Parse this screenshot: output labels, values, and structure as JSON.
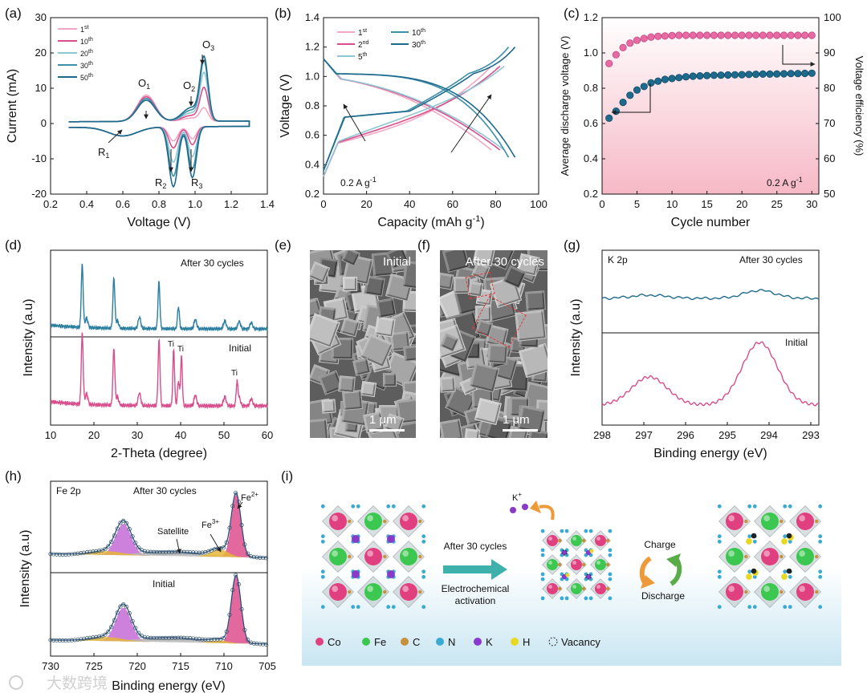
{
  "colors": {
    "pink": "#d94d8c",
    "pink_light": "#f0a8c4",
    "teal_light": "#8ec6d2",
    "teal": "#3c8fa8",
    "teal_dark": "#1e6a8c",
    "navy": "#2a6a8e"
  },
  "panel_letters": [
    "(a)",
    "(b)",
    "(c)",
    "(d)",
    "(e)",
    "(f)",
    "(g)",
    "(h)",
    "(i)"
  ],
  "chart_data": [
    {
      "panel": "a",
      "type": "line",
      "xlabel": "Voltage (V)",
      "ylabel": "Current (mA)",
      "xlim": [
        0.2,
        1.4
      ],
      "ylim": [
        -20,
        30
      ],
      "xticks": [
        "0.2",
        "0.4",
        "0.6",
        "0.8",
        "1.0",
        "1.2",
        "1.4"
      ],
      "yticks": [
        "-20",
        "-10",
        "0",
        "10",
        "20",
        "30"
      ],
      "legend": [
        "1st",
        "10th",
        "20th",
        "30th",
        "50th"
      ],
      "annotations": [
        "O1",
        "O2",
        "O3",
        "R1",
        "R2",
        "R3"
      ],
      "series": [
        {
          "name": "1st",
          "ox_x": 0.73,
          "ox_y": 7.5,
          "red_x": 0.88,
          "red_y": -4,
          "o3_x": 1.05,
          "o3_y": 3.5
        },
        {
          "name": "10th",
          "ox_x": 0.73,
          "ox_y": 7,
          "red_x": 0.88,
          "red_y": -6,
          "o3_x": 1.05,
          "o3_y": 9
        },
        {
          "name": "20th",
          "ox_x": 0.73,
          "ox_y": 6.5,
          "red_x": 0.88,
          "red_y": -10,
          "o3_x": 1.05,
          "o3_y": 13
        },
        {
          "name": "30th",
          "ox_x": 0.73,
          "ox_y": 6.5,
          "red_x": 0.88,
          "red_y": -14,
          "o3_x": 1.05,
          "o3_y": 16
        },
        {
          "name": "50th",
          "ox_x": 0.73,
          "ox_y": 6,
          "red_x": 0.88,
          "red_y": -17,
          "o3_x": 1.05,
          "o3_y": 17
        }
      ]
    },
    {
      "panel": "b",
      "type": "line",
      "xlabel": "Capacity (mAh g-1)",
      "ylabel": "Voltage (V)",
      "xlim": [
        0,
        100
      ],
      "ylim": [
        0.2,
        1.4
      ],
      "xticks": [
        "0",
        "20",
        "40",
        "60",
        "80",
        "100"
      ],
      "yticks": [
        "0.2",
        "0.4",
        "0.6",
        "0.8",
        "1.0",
        "1.2",
        "1.4"
      ],
      "legend": [
        "1st",
        "2nd",
        "5th",
        "10th",
        "30th"
      ],
      "rate_label": "0.2 A g-1",
      "series": [
        {
          "name": "1st",
          "capacity": 78
        },
        {
          "name": "2nd",
          "capacity": 82
        },
        {
          "name": "5th",
          "capacity": 84
        },
        {
          "name": "10th",
          "capacity": 86
        },
        {
          "name": "30th",
          "capacity": 89
        }
      ]
    },
    {
      "panel": "c",
      "type": "scatter",
      "xlabel": "Cycle number",
      "ylabel_left": "Average discharge voltage (V)",
      "ylabel_right": "Voltage efficiency (%)",
      "xlim": [
        0,
        31
      ],
      "ylim_left": [
        0.2,
        1.2
      ],
      "ylim_right": [
        50,
        100
      ],
      "xticks": [
        "0",
        "5",
        "10",
        "15",
        "20",
        "25",
        "30"
      ],
      "yticks_left": [
        "0.2",
        "0.4",
        "0.6",
        "0.8",
        "1.0",
        "1.2"
      ],
      "yticks_right": [
        "50",
        "60",
        "70",
        "80",
        "90",
        "100"
      ],
      "rate_label": "0.2 A g-1",
      "series": [
        {
          "name": "Voltage efficiency",
          "axis": "right",
          "x": [
            1,
            2,
            3,
            4,
            5,
            6,
            7,
            8,
            9,
            10,
            11,
            12,
            13,
            14,
            15,
            16,
            17,
            18,
            19,
            20,
            21,
            22,
            23,
            24,
            25,
            26,
            27,
            28,
            29,
            30
          ],
          "values": [
            87,
            89.5,
            91.5,
            92.8,
            93.6,
            94.1,
            94.5,
            94.7,
            94.8,
            94.9,
            95,
            95,
            95,
            95,
            95,
            95,
            95,
            95,
            95,
            95,
            95,
            95,
            95,
            95,
            95,
            95,
            95,
            95,
            95,
            95
          ]
        },
        {
          "name": "Average discharge voltage",
          "axis": "left",
          "x": [
            1,
            2,
            3,
            4,
            5,
            6,
            7,
            8,
            9,
            10,
            11,
            12,
            13,
            14,
            15,
            16,
            17,
            18,
            19,
            20,
            21,
            22,
            23,
            24,
            25,
            26,
            27,
            28,
            29,
            30
          ],
          "values": [
            0.63,
            0.67,
            0.72,
            0.76,
            0.79,
            0.81,
            0.83,
            0.84,
            0.85,
            0.855,
            0.86,
            0.865,
            0.868,
            0.87,
            0.872,
            0.873,
            0.874,
            0.875,
            0.876,
            0.877,
            0.878,
            0.879,
            0.88,
            0.88,
            0.881,
            0.882,
            0.883,
            0.883,
            0.884,
            0.885
          ]
        }
      ]
    },
    {
      "panel": "d",
      "type": "line",
      "xlabel": "2-Theta (degree)",
      "ylabel": "Intensity (a.u)",
      "xlim": [
        10,
        60
      ],
      "xticks": [
        "10",
        "20",
        "30",
        "40",
        "50",
        "60"
      ],
      "labels": [
        "After 30 cycles",
        "Initial"
      ],
      "peak_labels": [
        "Ti",
        "Ti",
        "Ti"
      ],
      "peaks": [
        17.4,
        24.6,
        35.0,
        39.5,
        50.0,
        53.5
      ]
    },
    {
      "panel": "g",
      "type": "line",
      "xlabel": "Binding energy (eV)",
      "ylabel": "Intensity (a.u)",
      "xlim": [
        298,
        292.5
      ],
      "xticks": [
        "298",
        "297",
        "296",
        "295",
        "294",
        "293"
      ],
      "element": "K 2p",
      "labels": [
        "After 30 cycles",
        "Initial"
      ],
      "peaks_ev": [
        296.8,
        294.0
      ]
    },
    {
      "panel": "h",
      "type": "line",
      "xlabel": "Binding energy (eV)",
      "ylabel": "Intensity (a.u)",
      "xlim": [
        730,
        705
      ],
      "xticks": [
        "730",
        "725",
        "720",
        "715",
        "710",
        "705"
      ],
      "element": "Fe 2p",
      "labels": [
        "After 30 cycles",
        "Initial"
      ],
      "annotations": [
        "Fe3+",
        "Fe2+",
        "Satellite"
      ],
      "peaks_ev": [
        721.5,
        708.5
      ]
    }
  ],
  "sem": {
    "e_label": "Initial",
    "f_label": "After 30 cycles",
    "scale": "1 μm"
  },
  "schematic": {
    "arrow_label": "After 30 cycles",
    "activation_1": "Electrochemical",
    "activation_2": "activation",
    "charge": "Charge",
    "discharge": "Discharge",
    "k_ion": "K+",
    "legend": [
      {
        "label": "Co",
        "color": "#e0407f"
      },
      {
        "label": "Fe",
        "color": "#3cc850"
      },
      {
        "label": "C",
        "color": "#c8903a"
      },
      {
        "label": "N",
        "color": "#3aaad0"
      },
      {
        "label": "K",
        "color": "#8a3ac8"
      },
      {
        "label": "H",
        "color": "#e8d820"
      },
      {
        "label": "Vacancy",
        "color": "#ffffff"
      }
    ]
  },
  "watermark": "大数跨境"
}
